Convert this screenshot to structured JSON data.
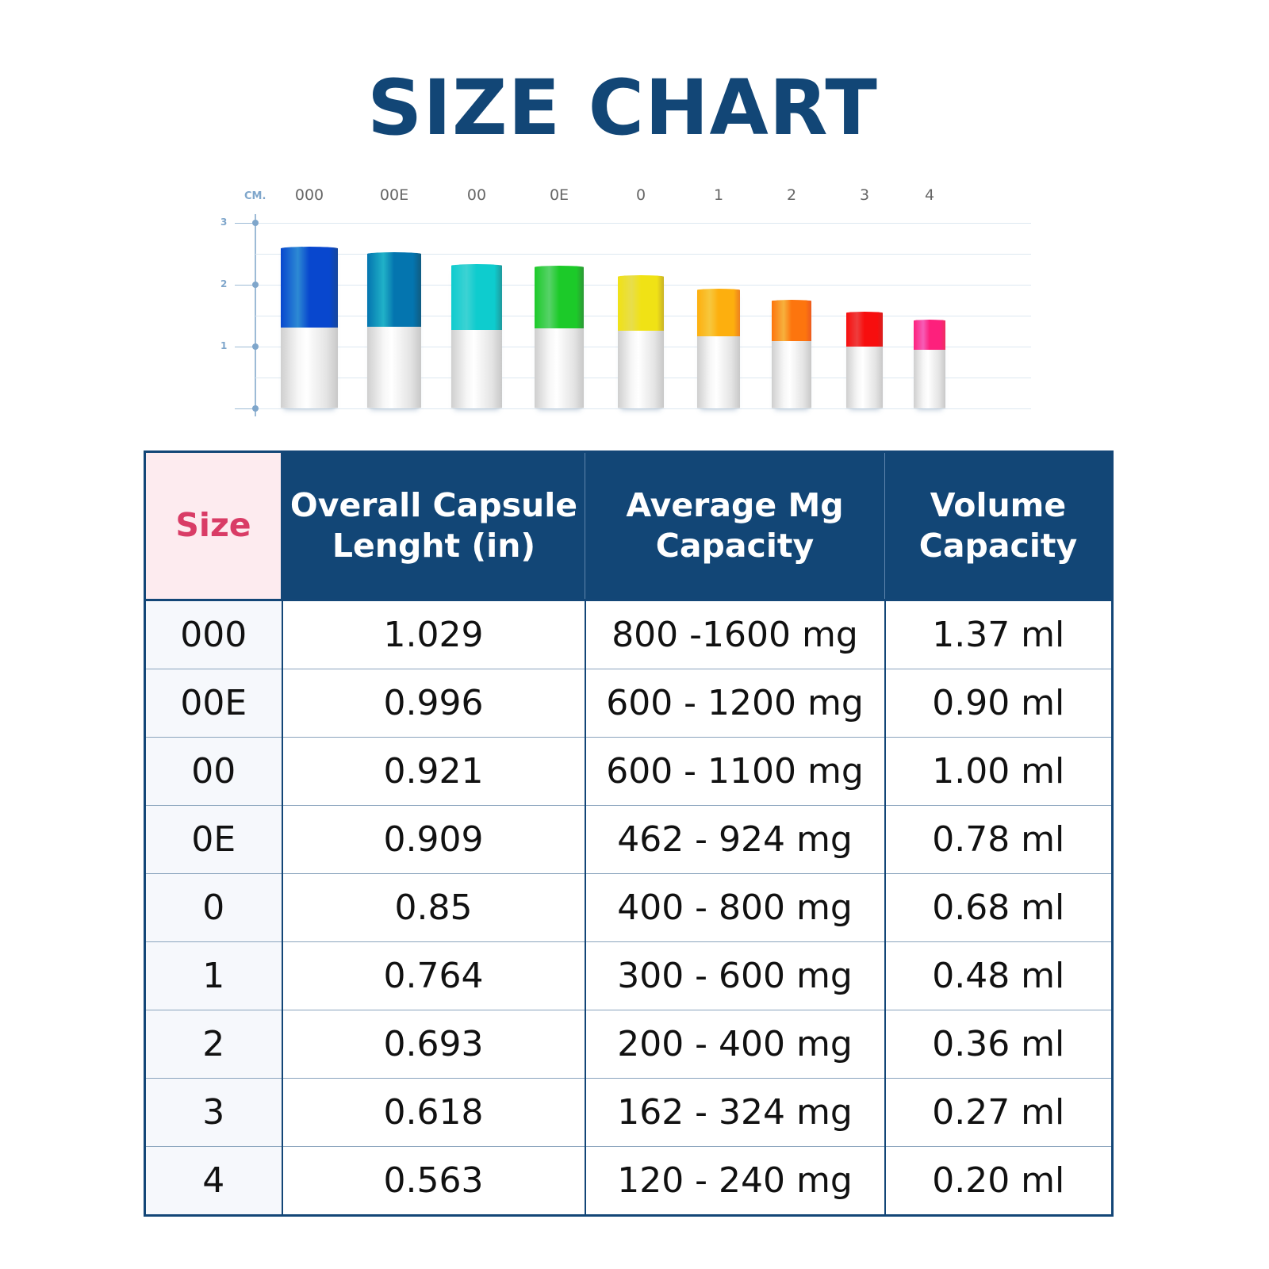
{
  "title": "SIZE CHART",
  "chart_data": {
    "type": "bar",
    "unit_label": "CM.",
    "y_ticks": [
      "3",
      "2",
      "1"
    ],
    "ylim": [
      0,
      3
    ],
    "categories": [
      "000",
      "00E",
      "00",
      "0E",
      "0",
      "1",
      "2",
      "3",
      "4"
    ],
    "values_in": [
      1.029,
      0.996,
      0.921,
      0.909,
      0.85,
      0.764,
      0.693,
      0.618,
      0.563
    ],
    "cap_colors": [
      "#1f5fb0",
      "#167a9a",
      "#2aaeb0",
      "#3cad48",
      "#d4c234",
      "#f09a2a",
      "#f07a2a",
      "#e02a2a",
      "#f0407e"
    ]
  },
  "table": {
    "headers": [
      "Size",
      "Overall Capsule Lenght (in)",
      "Average Mg Capacity",
      "Volume Capacity"
    ],
    "rows": [
      [
        "000",
        "1.029",
        "800 -1600 mg",
        "1.37 ml"
      ],
      [
        "00E",
        "0.996",
        "600 - 1200 mg",
        "0.90 ml"
      ],
      [
        "00",
        "0.921",
        "600 - 1100 mg",
        "1.00 ml"
      ],
      [
        "0E",
        "0.909",
        "462 - 924 mg",
        "0.78 ml"
      ],
      [
        "0",
        "0.85",
        "400 - 800 mg",
        "0.68 ml"
      ],
      [
        "1",
        "0.764",
        "300 - 600 mg",
        "0.48 ml"
      ],
      [
        "2",
        "0.693",
        "200 - 400 mg",
        "0.36 ml"
      ],
      [
        "3",
        "0.618",
        "162 - 324 mg",
        "0.27 ml"
      ],
      [
        "4",
        "0.563",
        "120 - 240 mg",
        "0.20 ml"
      ]
    ]
  }
}
